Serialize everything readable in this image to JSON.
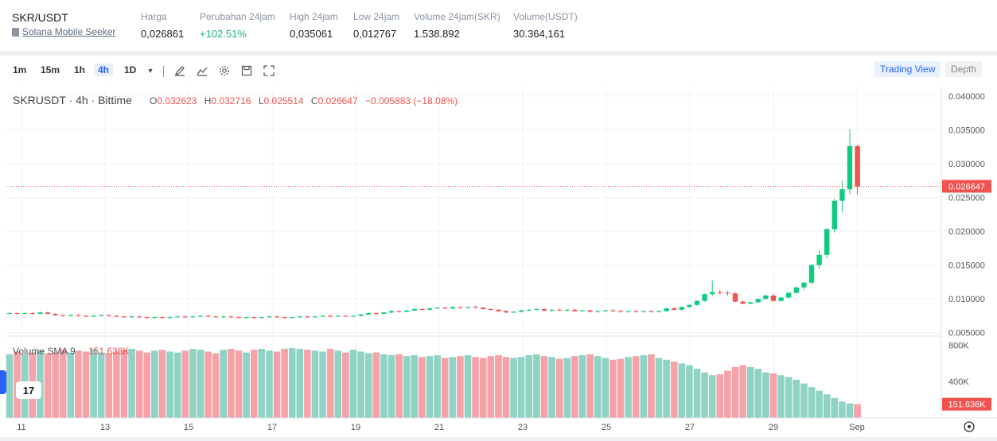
{
  "ticker": {
    "pair": "SKR/USDT",
    "subtitle": "Solana Mobile Seeker",
    "stats": [
      {
        "label": "Harga",
        "value": "0,026861",
        "positive": false
      },
      {
        "label": "Perubahan 24jam",
        "value": "+102.51%",
        "positive": true
      },
      {
        "label": "High 24jam",
        "value": "0,035061",
        "positive": false
      },
      {
        "label": "Low 24jam",
        "value": "0,012767",
        "positive": false
      },
      {
        "label": "Volume 24jam(SKR)",
        "value": "1.538.892",
        "positive": false
      },
      {
        "label": "Volume(USDT)",
        "value": "30.364,161",
        "positive": false
      }
    ]
  },
  "toolbar": {
    "timeframes": [
      "1m",
      "15m",
      "1h",
      "4h",
      "1D"
    ],
    "active_timeframe": "4h",
    "trading_view_label": "Trading View",
    "depth_label": "Depth"
  },
  "legend": {
    "symbol": "SKRUSDT · 4h · Bittime",
    "o_label": "O",
    "o": "0.032623",
    "h_label": "H",
    "h": "0.032716",
    "l_label": "L",
    "l": "0.025514",
    "c_label": "C",
    "c": "0.026647",
    "change": "−0.005883 (−18.08%)"
  },
  "volume_legend": {
    "label": "Volume SMA 9",
    "value": "151.636K"
  },
  "colors": {
    "up": "#26a69a",
    "up_candle": "#0ecb81",
    "down": "#ef5350",
    "up_volume": "#8fd3c5",
    "down_volume": "#f5a3a8",
    "accent": "#2962ff"
  },
  "chart_data": {
    "type": "candlestick",
    "price_axis": {
      "ticks": [
        "0.040000",
        "0.035000",
        "0.030000",
        "0.025000",
        "0.020000",
        "0.015000",
        "0.010000",
        "0.005000"
      ],
      "range": [
        0.0045,
        0.0415
      ],
      "last_price": "0.026647"
    },
    "volume_axis": {
      "ticks": [
        "800K",
        "400K"
      ],
      "range": [
        0,
        900000
      ],
      "last_volume": "151.636K"
    },
    "time_axis": {
      "ticks": [
        "11",
        "13",
        "15",
        "17",
        "19",
        "21",
        "23",
        "25",
        "27",
        "29",
        "Sep"
      ]
    },
    "grid": true,
    "candles": [
      {
        "o": 0.0079,
        "h": 0.0081,
        "l": 0.0077,
        "c": 0.0079
      },
      {
        "o": 0.0079,
        "h": 0.008,
        "l": 0.0077,
        "c": 0.0078
      },
      {
        "o": 0.0078,
        "h": 0.008,
        "l": 0.0077,
        "c": 0.0079
      },
      {
        "o": 0.0079,
        "h": 0.008,
        "l": 0.0077,
        "c": 0.0078
      },
      {
        "o": 0.0078,
        "h": 0.0081,
        "l": 0.0077,
        "c": 0.008
      },
      {
        "o": 0.008,
        "h": 0.0081,
        "l": 0.0077,
        "c": 0.0078
      },
      {
        "o": 0.0078,
        "h": 0.0079,
        "l": 0.0075,
        "c": 0.0076
      },
      {
        "o": 0.0076,
        "h": 0.0077,
        "l": 0.0074,
        "c": 0.0075
      },
      {
        "o": 0.0075,
        "h": 0.0077,
        "l": 0.0074,
        "c": 0.0076
      },
      {
        "o": 0.0076,
        "h": 0.0078,
        "l": 0.0074,
        "c": 0.0075
      },
      {
        "o": 0.0075,
        "h": 0.0076,
        "l": 0.0073,
        "c": 0.0074
      },
      {
        "o": 0.0074,
        "h": 0.0076,
        "l": 0.0073,
        "c": 0.0075
      },
      {
        "o": 0.0075,
        "h": 0.0077,
        "l": 0.0074,
        "c": 0.0076
      },
      {
        "o": 0.0076,
        "h": 0.0077,
        "l": 0.0074,
        "c": 0.0075
      },
      {
        "o": 0.0075,
        "h": 0.0076,
        "l": 0.0073,
        "c": 0.0074
      },
      {
        "o": 0.0074,
        "h": 0.0075,
        "l": 0.0072,
        "c": 0.0073
      },
      {
        "o": 0.0073,
        "h": 0.0075,
        "l": 0.0072,
        "c": 0.0074
      },
      {
        "o": 0.0074,
        "h": 0.0075,
        "l": 0.0072,
        "c": 0.0073
      },
      {
        "o": 0.0073,
        "h": 0.0074,
        "l": 0.0071,
        "c": 0.0072
      },
      {
        "o": 0.0072,
        "h": 0.0074,
        "l": 0.0071,
        "c": 0.0073
      },
      {
        "o": 0.0073,
        "h": 0.0074,
        "l": 0.0071,
        "c": 0.0072
      },
      {
        "o": 0.0072,
        "h": 0.0074,
        "l": 0.0071,
        "c": 0.0073
      },
      {
        "o": 0.0073,
        "h": 0.0075,
        "l": 0.0072,
        "c": 0.0074
      },
      {
        "o": 0.0074,
        "h": 0.0075,
        "l": 0.0072,
        "c": 0.0073
      },
      {
        "o": 0.0073,
        "h": 0.0075,
        "l": 0.0072,
        "c": 0.0074
      },
      {
        "o": 0.0074,
        "h": 0.0076,
        "l": 0.0073,
        "c": 0.0075
      },
      {
        "o": 0.0075,
        "h": 0.0076,
        "l": 0.0073,
        "c": 0.0074
      },
      {
        "o": 0.0074,
        "h": 0.0075,
        "l": 0.0072,
        "c": 0.0073
      },
      {
        "o": 0.0073,
        "h": 0.0075,
        "l": 0.0072,
        "c": 0.0074
      },
      {
        "o": 0.0074,
        "h": 0.0075,
        "l": 0.0072,
        "c": 0.0073
      },
      {
        "o": 0.0073,
        "h": 0.0074,
        "l": 0.0071,
        "c": 0.0072
      },
      {
        "o": 0.0072,
        "h": 0.0074,
        "l": 0.0071,
        "c": 0.0073
      },
      {
        "o": 0.0073,
        "h": 0.0074,
        "l": 0.0071,
        "c": 0.0072
      },
      {
        "o": 0.0072,
        "h": 0.0074,
        "l": 0.0071,
        "c": 0.0073
      },
      {
        "o": 0.0073,
        "h": 0.0075,
        "l": 0.0072,
        "c": 0.0074
      },
      {
        "o": 0.0074,
        "h": 0.0075,
        "l": 0.0072,
        "c": 0.0073
      },
      {
        "o": 0.0073,
        "h": 0.0074,
        "l": 0.0071,
        "c": 0.0072
      },
      {
        "o": 0.0072,
        "h": 0.0074,
        "l": 0.0071,
        "c": 0.0073
      },
      {
        "o": 0.0073,
        "h": 0.0075,
        "l": 0.0072,
        "c": 0.0074
      },
      {
        "o": 0.0074,
        "h": 0.0075,
        "l": 0.0072,
        "c": 0.0073
      },
      {
        "o": 0.0073,
        "h": 0.0075,
        "l": 0.0072,
        "c": 0.0074
      },
      {
        "o": 0.0074,
        "h": 0.0076,
        "l": 0.0073,
        "c": 0.0075
      },
      {
        "o": 0.0075,
        "h": 0.0076,
        "l": 0.0073,
        "c": 0.0074
      },
      {
        "o": 0.0074,
        "h": 0.0076,
        "l": 0.0073,
        "c": 0.0075
      },
      {
        "o": 0.0075,
        "h": 0.0076,
        "l": 0.0073,
        "c": 0.0074
      },
      {
        "o": 0.0074,
        "h": 0.0076,
        "l": 0.0073,
        "c": 0.0075
      },
      {
        "o": 0.0075,
        "h": 0.0078,
        "l": 0.0074,
        "c": 0.0077
      },
      {
        "o": 0.0077,
        "h": 0.008,
        "l": 0.0076,
        "c": 0.0079
      },
      {
        "o": 0.0079,
        "h": 0.008,
        "l": 0.0077,
        "c": 0.0078
      },
      {
        "o": 0.0078,
        "h": 0.0081,
        "l": 0.0077,
        "c": 0.008
      },
      {
        "o": 0.008,
        "h": 0.0083,
        "l": 0.0079,
        "c": 0.0082
      },
      {
        "o": 0.0082,
        "h": 0.0083,
        "l": 0.008,
        "c": 0.0081
      },
      {
        "o": 0.0081,
        "h": 0.0084,
        "l": 0.008,
        "c": 0.0083
      },
      {
        "o": 0.0083,
        "h": 0.0086,
        "l": 0.0082,
        "c": 0.0085
      },
      {
        "o": 0.0085,
        "h": 0.0086,
        "l": 0.0083,
        "c": 0.0084
      },
      {
        "o": 0.0084,
        "h": 0.0087,
        "l": 0.0083,
        "c": 0.0086
      },
      {
        "o": 0.0086,
        "h": 0.0088,
        "l": 0.0085,
        "c": 0.0087
      },
      {
        "o": 0.0087,
        "h": 0.0088,
        "l": 0.0085,
        "c": 0.0086
      },
      {
        "o": 0.0086,
        "h": 0.0089,
        "l": 0.0085,
        "c": 0.0088
      },
      {
        "o": 0.0088,
        "h": 0.0089,
        "l": 0.0086,
        "c": 0.0087
      },
      {
        "o": 0.0087,
        "h": 0.0089,
        "l": 0.0086,
        "c": 0.0088
      },
      {
        "o": 0.0088,
        "h": 0.009,
        "l": 0.0086,
        "c": 0.0087
      },
      {
        "o": 0.0087,
        "h": 0.0088,
        "l": 0.0084,
        "c": 0.0085
      },
      {
        "o": 0.0085,
        "h": 0.0086,
        "l": 0.0083,
        "c": 0.0084
      },
      {
        "o": 0.0084,
        "h": 0.0085,
        "l": 0.0081,
        "c": 0.0082
      },
      {
        "o": 0.0082,
        "h": 0.0083,
        "l": 0.0079,
        "c": 0.008
      },
      {
        "o": 0.008,
        "h": 0.0082,
        "l": 0.0079,
        "c": 0.0081
      },
      {
        "o": 0.0081,
        "h": 0.0084,
        "l": 0.008,
        "c": 0.0083
      },
      {
        "o": 0.0083,
        "h": 0.0085,
        "l": 0.0082,
        "c": 0.0084
      },
      {
        "o": 0.0084,
        "h": 0.0086,
        "l": 0.0083,
        "c": 0.0085
      },
      {
        "o": 0.0085,
        "h": 0.0086,
        "l": 0.0082,
        "c": 0.0083
      },
      {
        "o": 0.0083,
        "h": 0.0085,
        "l": 0.0081,
        "c": 0.0084
      },
      {
        "o": 0.0084,
        "h": 0.0086,
        "l": 0.0082,
        "c": 0.0083
      },
      {
        "o": 0.0083,
        "h": 0.0085,
        "l": 0.0081,
        "c": 0.0084
      },
      {
        "o": 0.0084,
        "h": 0.0085,
        "l": 0.0081,
        "c": 0.0082
      },
      {
        "o": 0.0082,
        "h": 0.0084,
        "l": 0.0081,
        "c": 0.0083
      },
      {
        "o": 0.0083,
        "h": 0.0084,
        "l": 0.008,
        "c": 0.0081
      },
      {
        "o": 0.0081,
        "h": 0.0083,
        "l": 0.008,
        "c": 0.0082
      },
      {
        "o": 0.0082,
        "h": 0.0084,
        "l": 0.0081,
        "c": 0.0083
      },
      {
        "o": 0.0083,
        "h": 0.0085,
        "l": 0.0081,
        "c": 0.0082
      },
      {
        "o": 0.0082,
        "h": 0.0084,
        "l": 0.008,
        "c": 0.0081
      },
      {
        "o": 0.0081,
        "h": 0.0083,
        "l": 0.008,
        "c": 0.0082
      },
      {
        "o": 0.0082,
        "h": 0.0083,
        "l": 0.008,
        "c": 0.0081
      },
      {
        "o": 0.0081,
        "h": 0.0083,
        "l": 0.008,
        "c": 0.0082
      },
      {
        "o": 0.0082,
        "h": 0.0083,
        "l": 0.008,
        "c": 0.0081
      },
      {
        "o": 0.0081,
        "h": 0.0083,
        "l": 0.008,
        "c": 0.0082
      },
      {
        "o": 0.0082,
        "h": 0.0087,
        "l": 0.0081,
        "c": 0.0086
      },
      {
        "o": 0.0086,
        "h": 0.0088,
        "l": 0.0083,
        "c": 0.0084
      },
      {
        "o": 0.0084,
        "h": 0.0089,
        "l": 0.0083,
        "c": 0.0088
      },
      {
        "o": 0.0088,
        "h": 0.0092,
        "l": 0.0087,
        "c": 0.0091
      },
      {
        "o": 0.0091,
        "h": 0.0098,
        "l": 0.009,
        "c": 0.0097
      },
      {
        "o": 0.0097,
        "h": 0.0108,
        "l": 0.0096,
        "c": 0.0107
      },
      {
        "o": 0.0107,
        "h": 0.0127,
        "l": 0.0104,
        "c": 0.011
      },
      {
        "o": 0.011,
        "h": 0.0113,
        "l": 0.0106,
        "c": 0.0109
      },
      {
        "o": 0.0109,
        "h": 0.0112,
        "l": 0.0105,
        "c": 0.0108
      },
      {
        "o": 0.0108,
        "h": 0.011,
        "l": 0.0095,
        "c": 0.0096
      },
      {
        "o": 0.0096,
        "h": 0.0098,
        "l": 0.0092,
        "c": 0.0093
      },
      {
        "o": 0.0093,
        "h": 0.0096,
        "l": 0.0092,
        "c": 0.0095
      },
      {
        "o": 0.0095,
        "h": 0.0101,
        "l": 0.0094,
        "c": 0.01
      },
      {
        "o": 0.01,
        "h": 0.0106,
        "l": 0.0099,
        "c": 0.0105
      },
      {
        "o": 0.0105,
        "h": 0.0108,
        "l": 0.0096,
        "c": 0.0097
      },
      {
        "o": 0.0097,
        "h": 0.0103,
        "l": 0.0096,
        "c": 0.0102
      },
      {
        "o": 0.0102,
        "h": 0.011,
        "l": 0.0101,
        "c": 0.0109
      },
      {
        "o": 0.0109,
        "h": 0.0118,
        "l": 0.0108,
        "c": 0.0117
      },
      {
        "o": 0.0117,
        "h": 0.0125,
        "l": 0.0113,
        "c": 0.0124
      },
      {
        "o": 0.0124,
        "h": 0.0152,
        "l": 0.0121,
        "c": 0.015
      },
      {
        "o": 0.015,
        "h": 0.0172,
        "l": 0.0145,
        "c": 0.0165
      },
      {
        "o": 0.0165,
        "h": 0.0205,
        "l": 0.016,
        "c": 0.0203
      },
      {
        "o": 0.0203,
        "h": 0.0248,
        "l": 0.0198,
        "c": 0.0245
      },
      {
        "o": 0.0245,
        "h": 0.0275,
        "l": 0.0228,
        "c": 0.0262
      },
      {
        "o": 0.0262,
        "h": 0.0351,
        "l": 0.0255,
        "c": 0.0326
      },
      {
        "o": 0.0326,
        "h": 0.0327,
        "l": 0.0255,
        "c": 0.0266
      }
    ],
    "volumes": [
      700000,
      730000,
      700000,
      720000,
      740000,
      710000,
      720000,
      750000,
      720000,
      740000,
      730000,
      760000,
      720000,
      710000,
      730000,
      750000,
      760000,
      740000,
      720000,
      740000,
      750000,
      730000,
      720000,
      740000,
      760000,
      750000,
      730000,
      710000,
      750000,
      760000,
      740000,
      720000,
      750000,
      760000,
      740000,
      730000,
      760000,
      770000,
      760000,
      750000,
      740000,
      730000,
      760000,
      740000,
      720000,
      750000,
      730000,
      710000,
      720000,
      700000,
      690000,
      700000,
      680000,
      690000,
      670000,
      680000,
      690000,
      660000,
      670000,
      680000,
      690000,
      670000,
      660000,
      680000,
      690000,
      670000,
      660000,
      670000,
      690000,
      700000,
      680000,
      670000,
      650000,
      660000,
      680000,
      690000,
      700000,
      680000,
      660000,
      640000,
      650000,
      670000,
      680000,
      690000,
      700000,
      660000,
      640000,
      620000,
      600000,
      580000,
      540000,
      500000,
      470000,
      480000,
      520000,
      560000,
      580000,
      560000,
      540000,
      500000,
      490000,
      470000,
      450000,
      420000,
      380000,
      340000,
      300000,
      260000,
      220000,
      180000,
      160000,
      151636
    ]
  }
}
